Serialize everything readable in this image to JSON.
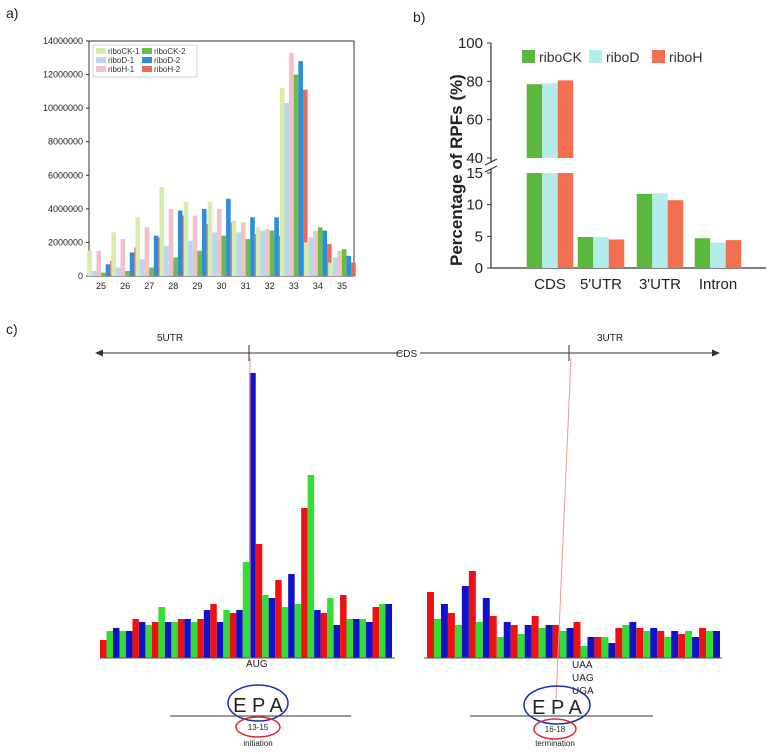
{
  "panels": {
    "a": "a)",
    "b": "b)",
    "c": "c)"
  },
  "colors": {
    "riboCK_1": "#d6ecaa",
    "riboD_1": "#b5d8ee",
    "riboH_1": "#f2c0c6",
    "riboCK_2": "#6cbd45",
    "riboD_2": "#2b8fe0",
    "riboH_2": "#ee6a55",
    "b_riboCK": "#5ab83c",
    "b_riboD": "#b4eceb",
    "b_riboH": "#f26f50",
    "c_red": "#ee1111",
    "c_green": "#33dd33",
    "c_blue": "#1111cc"
  },
  "chart_data": [
    {
      "type": "bar",
      "panel": "a",
      "categories": [
        "25",
        "26",
        "27",
        "28",
        "29",
        "30",
        "31",
        "32",
        "33",
        "34",
        "35"
      ],
      "ylim": [
        0,
        14000000
      ],
      "yticks": [
        "0",
        "2000000",
        "4000000",
        "6000000",
        "8000000",
        "10000000",
        "12000000",
        "14000000"
      ],
      "series": [
        {
          "name": "riboCK-1",
          "values": [
            1500000,
            2600000,
            3500000,
            5300000,
            4400000,
            4400000,
            3300000,
            2900000,
            11200000,
            2000000,
            800000
          ]
        },
        {
          "name": "riboD-1",
          "values": [
            300000,
            500000,
            1000000,
            1800000,
            2100000,
            2600000,
            2600000,
            2700000,
            10300000,
            2300000,
            1100000
          ]
        },
        {
          "name": "riboH-1",
          "values": [
            1500000,
            2200000,
            2900000,
            4000000,
            3600000,
            4000000,
            3200000,
            2800000,
            13300000,
            2700000,
            1500000
          ]
        },
        {
          "name": "riboCK-2",
          "values": [
            200000,
            300000,
            500000,
            1100000,
            1500000,
            2400000,
            2200000,
            2700000,
            12000000,
            2900000,
            1600000
          ]
        },
        {
          "name": "riboD-2",
          "values": [
            700000,
            1400000,
            2400000,
            3900000,
            4000000,
            4600000,
            3500000,
            3500000,
            12800000,
            2700000,
            1200000
          ]
        },
        {
          "name": "riboH-2",
          "values": [
            900000,
            1700000,
            2300000,
            3600000,
            3100000,
            3200000,
            2500000,
            2400000,
            11100000,
            1900000,
            800000
          ]
        }
      ],
      "legend": [
        "riboCK-1",
        "riboD-1",
        "riboH-1",
        "riboCK-2",
        "riboD-2",
        "riboH-2"
      ]
    },
    {
      "type": "bar",
      "panel": "b",
      "categories": [
        "CDS",
        "5'UTR",
        "3'UTR",
        "Intron"
      ],
      "ylabel": "Percentage of RPFs (%)",
      "ylim_lower": [
        0,
        15
      ],
      "ylim_upper": [
        40,
        100
      ],
      "yticks_lower": [
        "0",
        "5",
        "10",
        "15"
      ],
      "yticks_upper": [
        "40",
        "60",
        "80",
        "100"
      ],
      "series": [
        {
          "name": "riboCK",
          "values": [
            78.5,
            4.9,
            11.7,
            4.7
          ]
        },
        {
          "name": "riboD",
          "values": [
            79,
            4.9,
            11.8,
            4.0
          ]
        },
        {
          "name": "riboH",
          "values": [
            80.5,
            4.5,
            10.7,
            4.4
          ]
        }
      ],
      "legend": [
        "riboCK",
        "riboD",
        "riboH"
      ]
    },
    {
      "type": "bar",
      "panel": "c",
      "labels": {
        "utr5": "5UTR",
        "cds": "CDS",
        "utr3": "3UTR",
        "start_codon": "AUG",
        "stop_codons": [
          "UAA",
          "UAG",
          "UGA"
        ],
        "epa": "E P A",
        "start_range": "13-15",
        "start_name": "initiation",
        "end_range": "16-18",
        "end_name": "termination"
      },
      "start_group": {
        "colors": [
          "red",
          "green",
          "blue",
          "green",
          "blue",
          "red",
          "blue",
          "green",
          "red",
          "green",
          "blue",
          "green",
          "red",
          "blue",
          "green",
          "red",
          "blue",
          "red",
          "blue",
          "green",
          "red",
          "blue",
          "green",
          "blue",
          "red",
          "green",
          "blue",
          "red",
          "green",
          "blue",
          "green",
          "red",
          "green",
          "blue",
          "red",
          "green",
          "blue",
          "red",
          "green",
          "blue",
          "green",
          "blue",
          "red",
          "green",
          "blue"
        ],
        "values": [
          0.06,
          0.09,
          0.1,
          0.09,
          0.09,
          0.13,
          0.12,
          0.11,
          0.12,
          0.17,
          0.12,
          0.12,
          0.13,
          0.13,
          0.12,
          0.13,
          0.16,
          0.18,
          0.12,
          0.16,
          0.15,
          0.16,
          0.32,
          0.95,
          0.38,
          0.21,
          0.2,
          0.26,
          0.17,
          0.28,
          0.18,
          0.5,
          0.61,
          0.16,
          0.15,
          0.2,
          0.11,
          0.21,
          0.13,
          0.13,
          0.13,
          0.12,
          0.17,
          0.18,
          0.18
        ]
      },
      "end_group": {
        "colors": [
          "red",
          "green",
          "blue",
          "red",
          "green",
          "blue",
          "red",
          "green",
          "blue",
          "red",
          "green",
          "blue",
          "red",
          "green",
          "blue",
          "red",
          "green",
          "blue",
          "red",
          "green",
          "blue",
          "red",
          "green",
          "blue",
          "red",
          "green",
          "blue",
          "red",
          "green",
          "blue",
          "red",
          "green",
          "blue",
          "red",
          "green",
          "blue",
          "red",
          "green",
          "blue",
          "red",
          "green",
          "blue"
        ],
        "values": [
          0.22,
          0.13,
          0.18,
          0.15,
          0.11,
          0.24,
          0.29,
          0.12,
          0.2,
          0.14,
          0.07,
          0.12,
          0.11,
          0.08,
          0.11,
          0.14,
          0.1,
          0.11,
          0.11,
          0.09,
          0.1,
          0.12,
          0.04,
          0.07,
          0.07,
          0.07,
          0.05,
          0.1,
          0.11,
          0.12,
          0.1,
          0.09,
          0.1,
          0.09,
          0.07,
          0.09,
          0.08,
          0.09,
          0.07,
          0.1,
          0.09,
          0.09
        ]
      }
    }
  ]
}
